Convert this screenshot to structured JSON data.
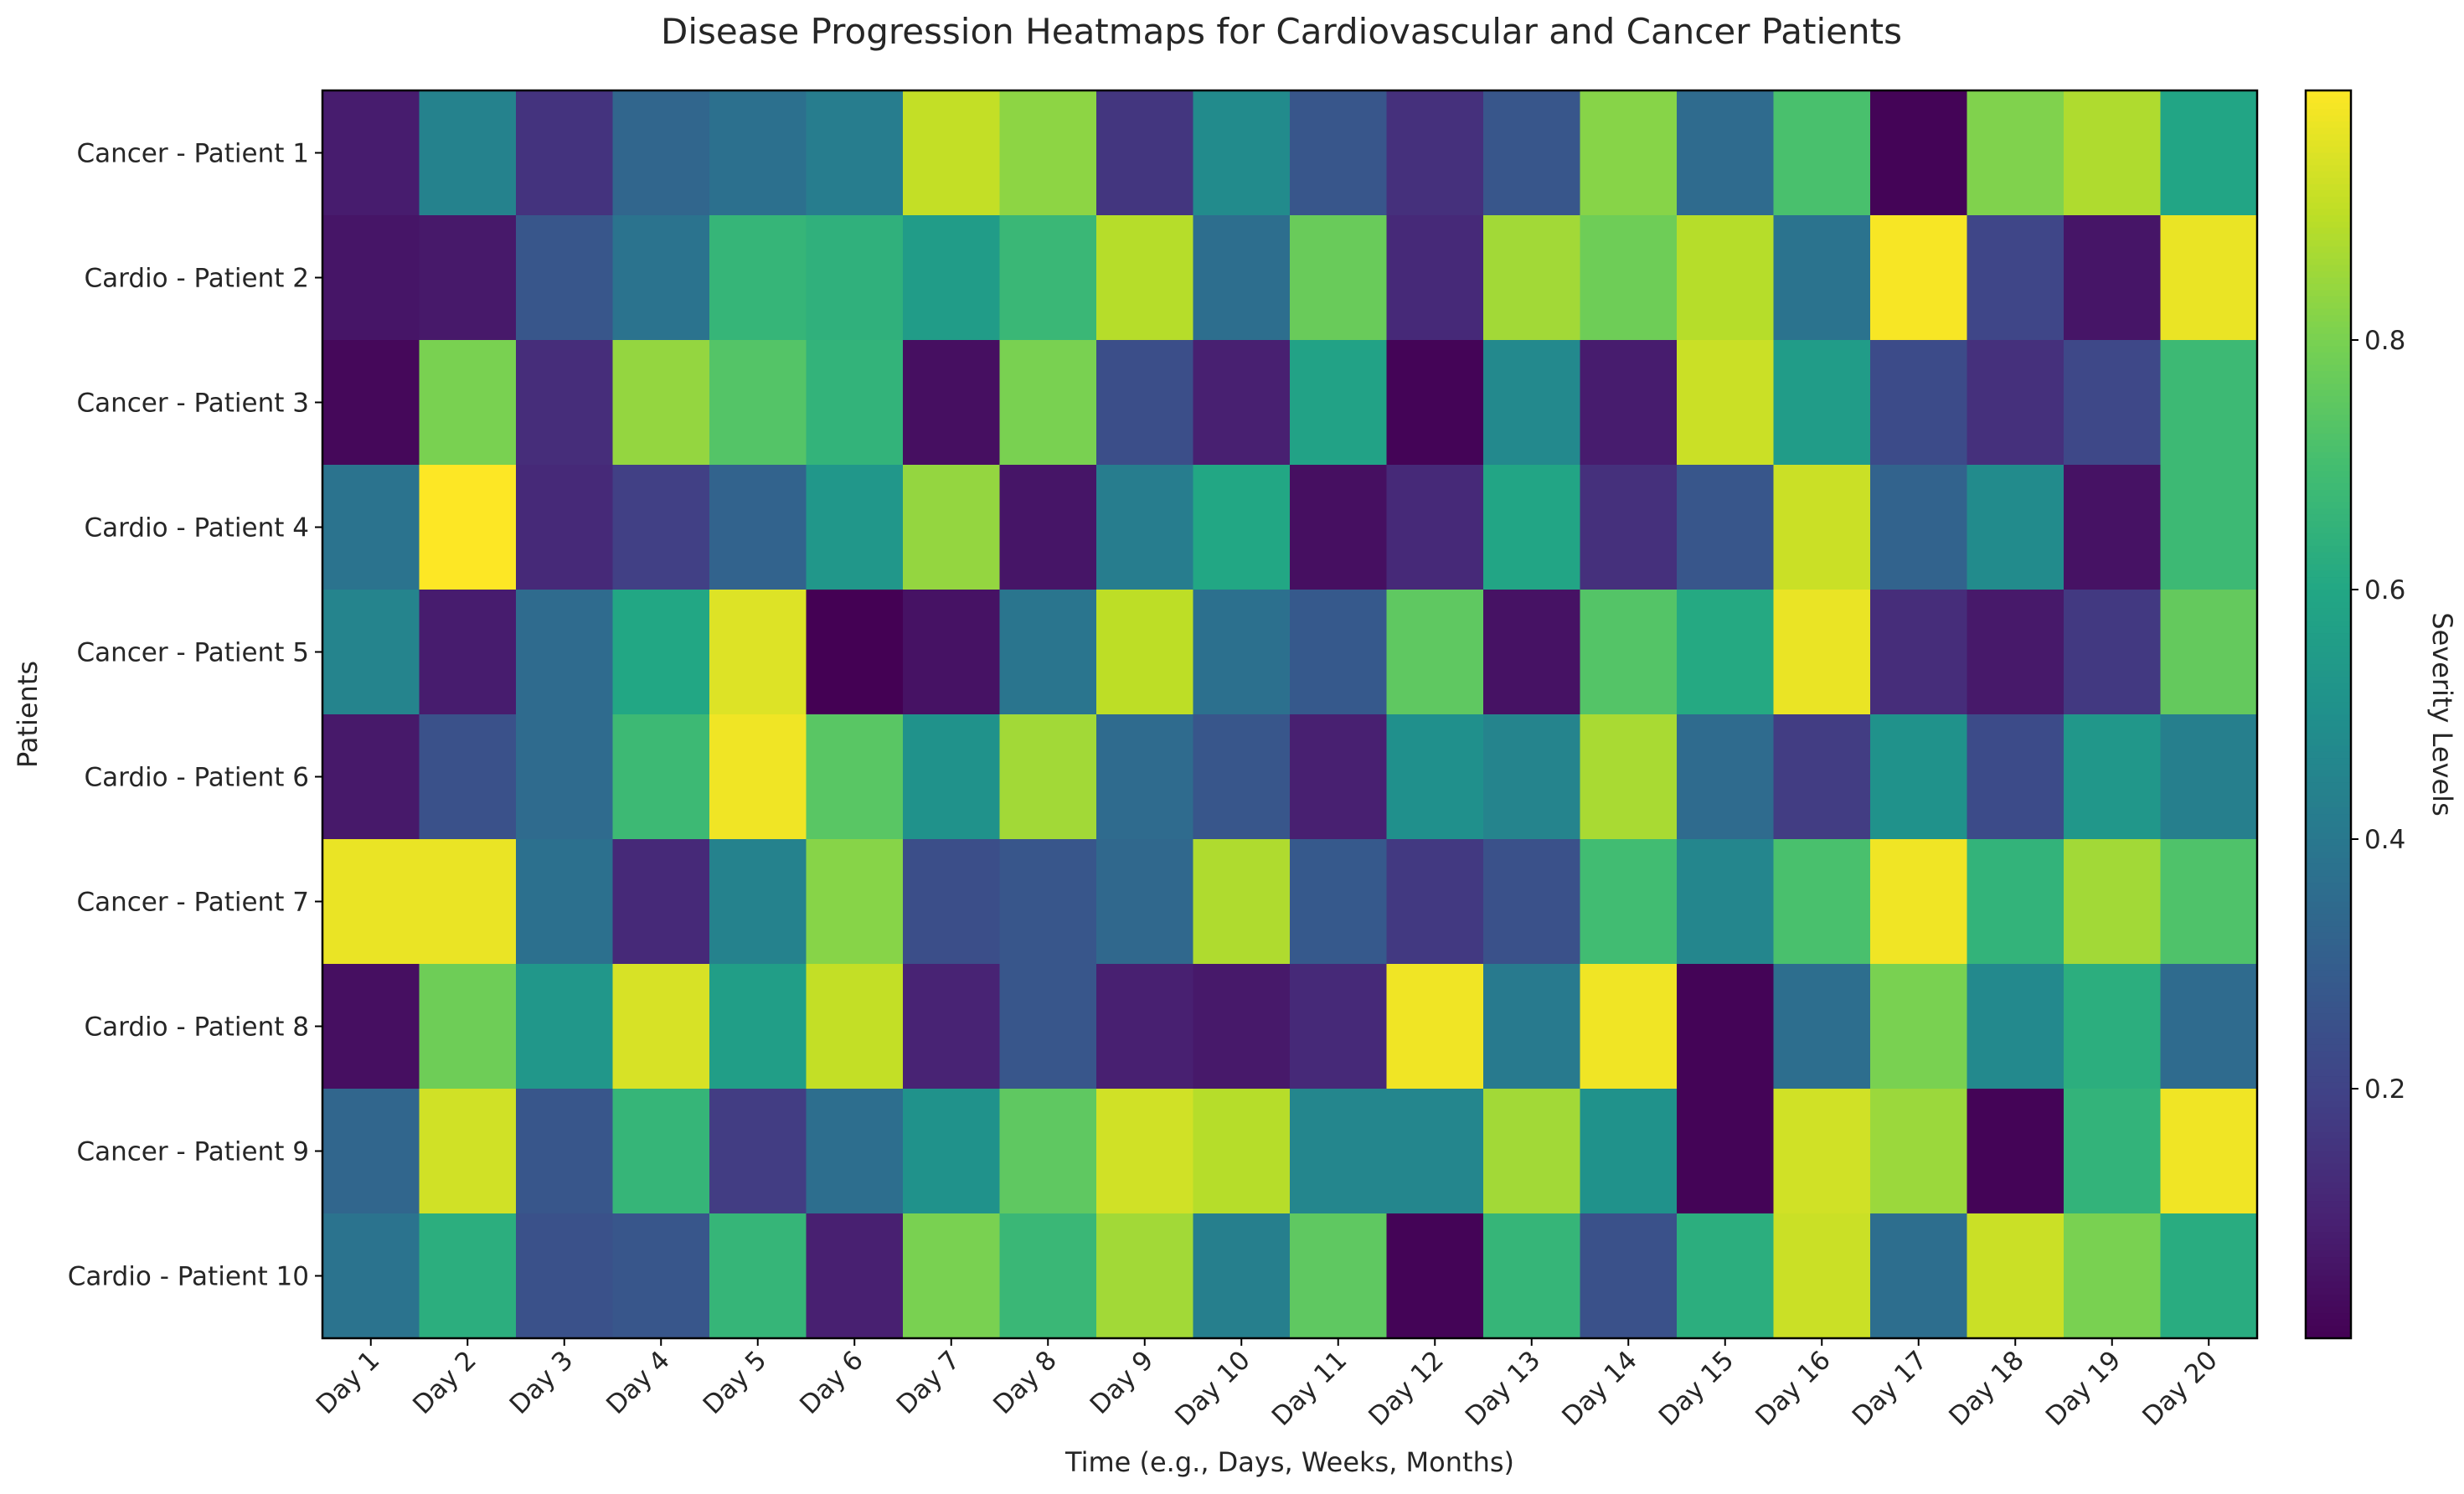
{
  "chart_data": {
    "type": "heatmap",
    "title": "Disease Progression Heatmaps for Cardiovascular and Cancer Patients",
    "xlabel": "Time (e.g., Days, Weeks, Months)",
    "ylabel": "Patients",
    "colorbar_label": "Severity Levels",
    "colormap": "viridis",
    "colorbar_range": [
      0.0,
      1.0
    ],
    "colorbar_ticks": [
      "0.2",
      "0.4",
      "0.6",
      "0.8"
    ],
    "x_categories": [
      "Day 1",
      "Day 2",
      "Day 3",
      "Day 4",
      "Day 5",
      "Day 6",
      "Day 7",
      "Day 8",
      "Day 9",
      "Day 10",
      "Day 11",
      "Day 12",
      "Day 13",
      "Day 14",
      "Day 15",
      "Day 16",
      "Day 17",
      "Day 18",
      "Day 19",
      "Day 20"
    ],
    "y_categories": [
      "Cancer - Patient 1",
      "Cardio - Patient 2",
      "Cancer - Patient 3",
      "Cardio - Patient 4",
      "Cancer - Patient 5",
      "Cardio - Patient 6",
      "Cancer - Patient 7",
      "Cardio - Patient 8",
      "Cancer - Patient 9",
      "Cardio - Patient 10"
    ],
    "values": [
      [
        0.08,
        0.44,
        0.15,
        0.33,
        0.37,
        0.42,
        0.91,
        0.83,
        0.16,
        0.48,
        0.27,
        0.14,
        0.27,
        0.82,
        0.35,
        0.71,
        0.01,
        0.81,
        0.88,
        0.59
      ],
      [
        0.06,
        0.07,
        0.27,
        0.38,
        0.66,
        0.64,
        0.55,
        0.67,
        0.89,
        0.36,
        0.77,
        0.12,
        0.86,
        0.78,
        0.89,
        0.38,
        0.99,
        0.21,
        0.06,
        0.97
      ],
      [
        0.02,
        0.8,
        0.13,
        0.84,
        0.73,
        0.65,
        0.04,
        0.8,
        0.24,
        0.09,
        0.58,
        0.01,
        0.47,
        0.08,
        0.92,
        0.55,
        0.23,
        0.14,
        0.22,
        0.68
      ],
      [
        0.38,
        1.0,
        0.12,
        0.19,
        0.32,
        0.53,
        0.84,
        0.06,
        0.42,
        0.6,
        0.04,
        0.12,
        0.59,
        0.14,
        0.27,
        0.92,
        0.32,
        0.48,
        0.05,
        0.68
      ],
      [
        0.45,
        0.08,
        0.35,
        0.6,
        0.95,
        0.0,
        0.05,
        0.39,
        0.9,
        0.37,
        0.28,
        0.75,
        0.05,
        0.73,
        0.61,
        0.97,
        0.13,
        0.07,
        0.17,
        0.76
      ],
      [
        0.07,
        0.25,
        0.35,
        0.68,
        0.98,
        0.74,
        0.51,
        0.86,
        0.35,
        0.27,
        0.09,
        0.5,
        0.45,
        0.87,
        0.35,
        0.18,
        0.51,
        0.23,
        0.53,
        0.43
      ],
      [
        0.97,
        0.97,
        0.37,
        0.12,
        0.44,
        0.82,
        0.24,
        0.27,
        0.34,
        0.88,
        0.28,
        0.17,
        0.25,
        0.69,
        0.46,
        0.71,
        0.98,
        0.65,
        0.86,
        0.72
      ],
      [
        0.04,
        0.78,
        0.53,
        0.94,
        0.56,
        0.91,
        0.1,
        0.27,
        0.09,
        0.07,
        0.12,
        0.98,
        0.41,
        0.98,
        0.01,
        0.36,
        0.8,
        0.47,
        0.63,
        0.35
      ],
      [
        0.33,
        0.93,
        0.27,
        0.66,
        0.18,
        0.36,
        0.51,
        0.75,
        0.93,
        0.89,
        0.46,
        0.46,
        0.86,
        0.51,
        0.01,
        0.93,
        0.85,
        0.01,
        0.65,
        0.98
      ],
      [
        0.38,
        0.63,
        0.25,
        0.27,
        0.66,
        0.09,
        0.8,
        0.67,
        0.86,
        0.43,
        0.75,
        0.01,
        0.66,
        0.25,
        0.63,
        0.92,
        0.36,
        0.92,
        0.8,
        0.62
      ]
    ]
  }
}
